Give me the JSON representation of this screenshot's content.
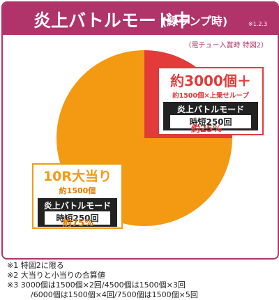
{
  "header": {
    "title": "炎上バトルモード中",
    "subtitle": "(緑ランプ時)",
    "note_ref": "※1.2.3"
  },
  "condition": "（電チュー入賞時 特図2）",
  "colors": {
    "accent": "#b0336a",
    "red": "#e33a3a",
    "orange": "#f39a12"
  },
  "chart_data": {
    "type": "pie",
    "slices": [
      {
        "label": "約3000個＋",
        "value": 25,
        "percent_label": "約25%",
        "color": "#e33a3a",
        "detail": "約1500個×上乗せループ",
        "mode": "炎上バトルモード",
        "jitan": "時短250回"
      },
      {
        "label": "10R大当り",
        "value": 75,
        "percent_label": "約75%",
        "color": "#f39a12",
        "detail": "約1500個",
        "mode": "炎上バトルモード",
        "jitan": "時短250回"
      }
    ]
  },
  "footnotes": [
    "※1 特図2に限る",
    "※2 大当りと小当りの合算値",
    "※3 3000個は1500個×2回/4500個は1500個×3回",
    "/6000個は1500個×4回/7500個は1500個×5回"
  ]
}
